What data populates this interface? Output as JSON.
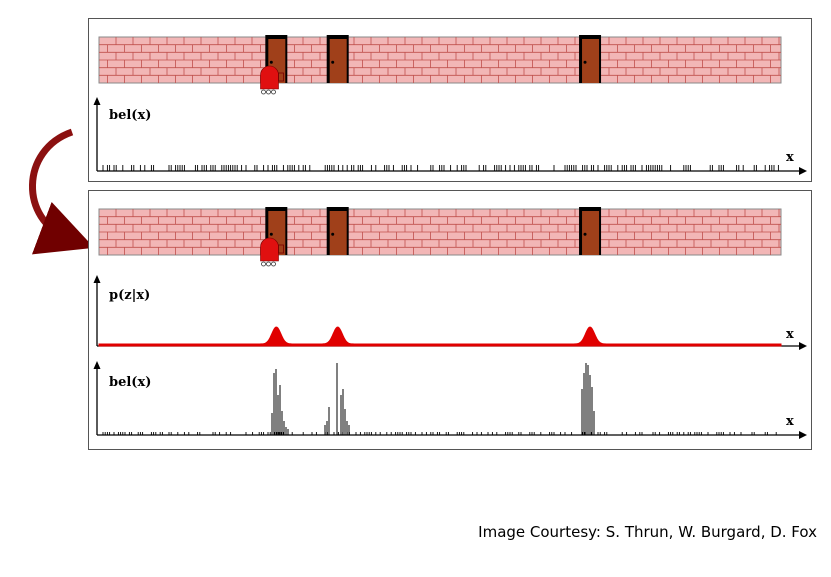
{
  "top_panel": {
    "ylabel": "bel(x)",
    "xlabel": "x",
    "door_positions": [
      0.26,
      0.35,
      0.72
    ],
    "robot_position": 0.25
  },
  "bottom_panel": {
    "sensor_ylabel": "p(z|x)",
    "sensor_xlabel": "x",
    "belief_ylabel": "bel(x)",
    "belief_xlabel": "x",
    "door_positions": [
      0.26,
      0.35,
      0.72
    ],
    "robot_position": 0.25
  },
  "colors": {
    "brick": "#f2b6b6",
    "mortar": "#c0504d",
    "door": "#a0401a",
    "robot": "#e01010",
    "sensor_curve": "#e00000",
    "arrow": "#a00000"
  },
  "credit": "Image Courtesy: S. Thrun, W. Burgard, D. Fox"
}
